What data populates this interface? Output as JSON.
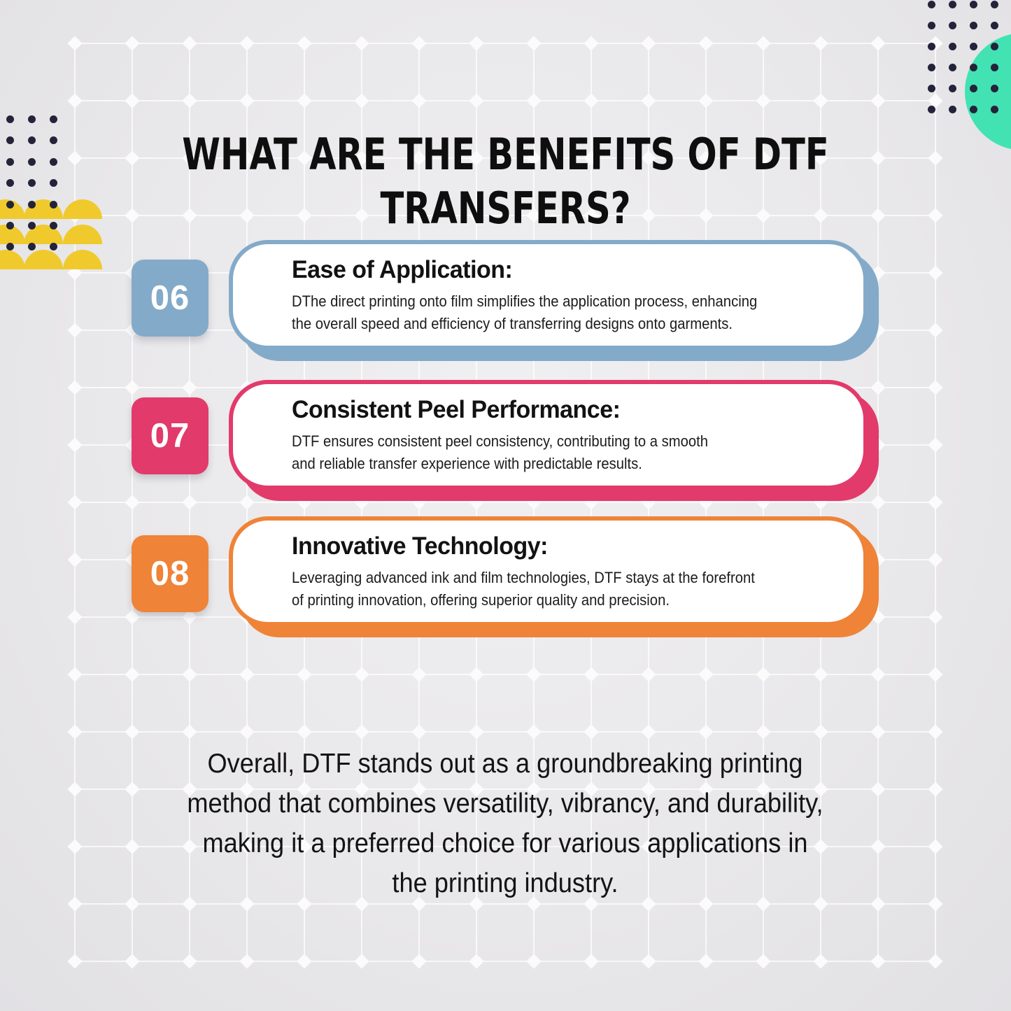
{
  "title": "WHAT ARE THE BENEFITS OF DTF\nTRANSFERS?",
  "benefits": [
    {
      "number": "06",
      "accent": "#84aac9",
      "heading": "Ease of Application:",
      "body": "DThe direct printing onto film simplifies the application process, enhancing\nthe overall speed and efficiency of transferring designs onto garments."
    },
    {
      "number": "07",
      "accent": "#e23a6b",
      "heading": "Consistent Peel Performance:",
      "body": "DTF ensures consistent peel consistency, contributing to a smooth\nand reliable transfer experience with predictable results."
    },
    {
      "number": "08",
      "accent": "#ef8338",
      "heading": "Innovative Technology:",
      "body": "Leveraging advanced ink and film technologies, DTF stays at the forefront\nof printing innovation, offering superior quality and precision."
    }
  ],
  "conclusion": "Overall, DTF stands out as a groundbreaking printing\nmethod that combines versatility, vibrancy, and durability,\nmaking it a preferred choice for various applications in\nthe printing industry.",
  "decor": {
    "dot_color": "#23233a",
    "circle_color": "#42e2b3",
    "scallop_color": "#f0ca2c",
    "grid_line_color": "#ffffff",
    "diamond_color": "#fbfbfc"
  }
}
